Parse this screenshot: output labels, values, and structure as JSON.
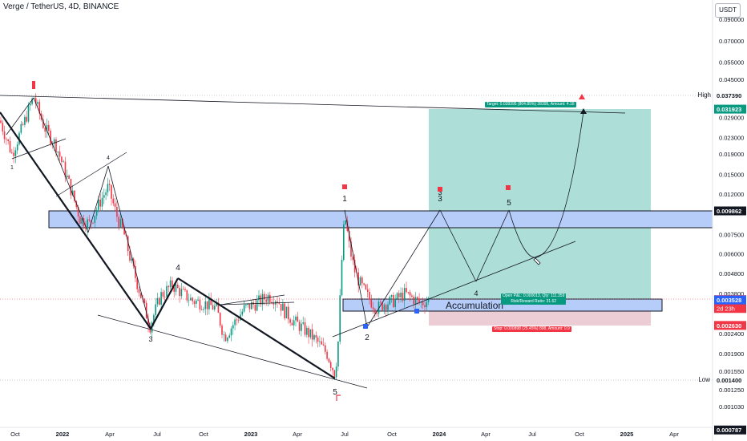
{
  "header": {
    "title": "Verge / TetherUS, 4D, BINANCE",
    "currency": "USDT"
  },
  "chart_data": {
    "type": "candlestick",
    "title": "Verge / TetherUS, 4D, BINANCE",
    "y_scale": "log",
    "ylim": [
      0.00075,
      0.105
    ],
    "x_ticks": [
      "Oct",
      "2022",
      "Apr",
      "Jul",
      "Oct",
      "2023",
      "Apr",
      "Jul",
      "Oct",
      "2024",
      "Apr",
      "Jul",
      "Oct",
      "2025",
      "Apr"
    ],
    "y_ticks": [
      "0.090000",
      "0.070000",
      "0.055000",
      "0.045000",
      "0.029000",
      "0.023000",
      "0.019000",
      "0.015000",
      "0.012000",
      "0.007500",
      "0.006000",
      "0.004800",
      "0.003800",
      "0.002400",
      "0.001900",
      "0.001550",
      "0.001250",
      "0.001030"
    ],
    "price_markers": [
      {
        "value": "0.037390",
        "color": "#ffffff",
        "text_color": "#131722",
        "label": "High"
      },
      {
        "value": "0.031923",
        "color": "#089981"
      },
      {
        "value": "0.009862",
        "color": "#131722"
      },
      {
        "value": "0.003541",
        "color": "#f23645",
        "sub": "2d 23h"
      },
      {
        "value": "0.003528",
        "color": "#2962ff"
      },
      {
        "value": "0.002630",
        "color": "#f23645"
      },
      {
        "value": "0.001400",
        "color": "#ffffff",
        "text_color": "#131722",
        "label": "Low"
      },
      {
        "value": "0.000787",
        "color": "#131722"
      }
    ],
    "high_label": "High",
    "low_label": "Low",
    "wave_labels": [
      "1",
      "2",
      "3",
      "4",
      "5"
    ],
    "elliott_top": [
      "1",
      "3",
      "5"
    ],
    "mid_labels": [
      "4",
      "4",
      "3",
      "3",
      "5",
      "1",
      "2",
      "3",
      "4",
      "5"
    ],
    "accumulation_label": "Accumulation",
    "target_label": "Target: 0.028395 (804.85%) 28395, Amount: 4.16",
    "stop_label": "Stop: 0.000898 (25.45%) 898, Amount: 0.9",
    "position_label_1": "Open P&L: 0.000013, Qty: 111.359",
    "position_label_2": "Risk/Reward Ratio: 31.62",
    "colors": {
      "up": "#089981",
      "down": "#f23645",
      "target_zone": "#9fd8d0",
      "stop_zone": "#eac6d0",
      "resistance_zone": "#b6cdfa",
      "zone_border": "#131722"
    }
  }
}
